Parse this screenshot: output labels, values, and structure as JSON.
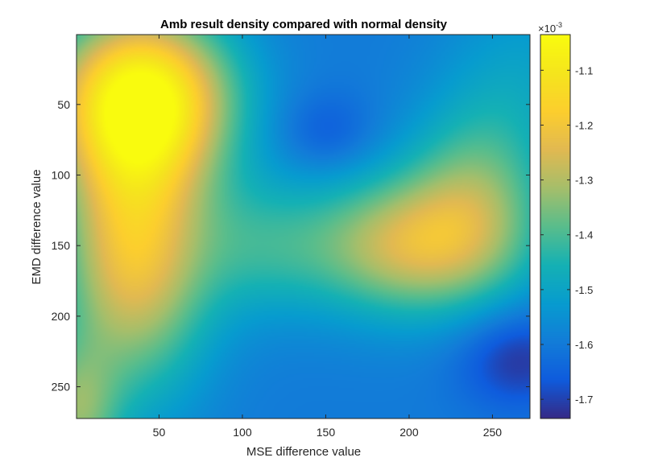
{
  "chart_data": {
    "type": "heatmap",
    "title": "Amb result density compared with normal density",
    "xlabel": "MSE difference value",
    "ylabel": "EMD difference value",
    "xlim": [
      0.5,
      272.5
    ],
    "ylim": [
      0.5,
      272.5
    ],
    "y_direction": "reverse",
    "x_ticks": [
      50,
      100,
      150,
      200,
      250
    ],
    "y_ticks": [
      50,
      100,
      150,
      200,
      250
    ],
    "colormap": "parula",
    "colorbar": {
      "range": [
        -1.735,
        -1.035
      ],
      "ticks": [
        -1.1,
        -1.2,
        -1.3,
        -1.4,
        -1.5,
        -1.6,
        -1.7
      ],
      "tick_labels": [
        "-1.1",
        "-1.2",
        "-1.3",
        "-1.4",
        "-1.5",
        "-1.6",
        "-1.7"
      ],
      "exponent_base": "10",
      "exponent_power": "-3",
      "exponent_prefix": "×"
    },
    "value_scale": "1e-3",
    "surface_components": {
      "base": -1.6,
      "bumps": [
        {
          "x": 40,
          "y": 45,
          "sx": 38,
          "sy": 42,
          "amp": 0.52
        },
        {
          "x": 35,
          "y": 150,
          "sx": 32,
          "sy": 70,
          "amp": 0.4
        },
        {
          "x": 0,
          "y": 270,
          "sx": 18,
          "sy": 35,
          "amp": 0.22
        },
        {
          "x": 200,
          "y": 150,
          "sx": 45,
          "sy": 35,
          "amp": 0.33
        },
        {
          "x": 240,
          "y": 110,
          "sx": 30,
          "sy": 45,
          "amp": 0.18
        },
        {
          "x": 110,
          "y": 150,
          "sx": 30,
          "sy": 35,
          "amp": 0.12
        },
        {
          "x": 270,
          "y": 30,
          "sx": 35,
          "sy": 50,
          "amp": 0.08
        },
        {
          "x": 150,
          "y": 70,
          "sx": 20,
          "sy": 20,
          "amp": -0.07
        },
        {
          "x": 265,
          "y": 230,
          "sx": 25,
          "sy": 25,
          "amp": -0.12
        }
      ]
    }
  }
}
